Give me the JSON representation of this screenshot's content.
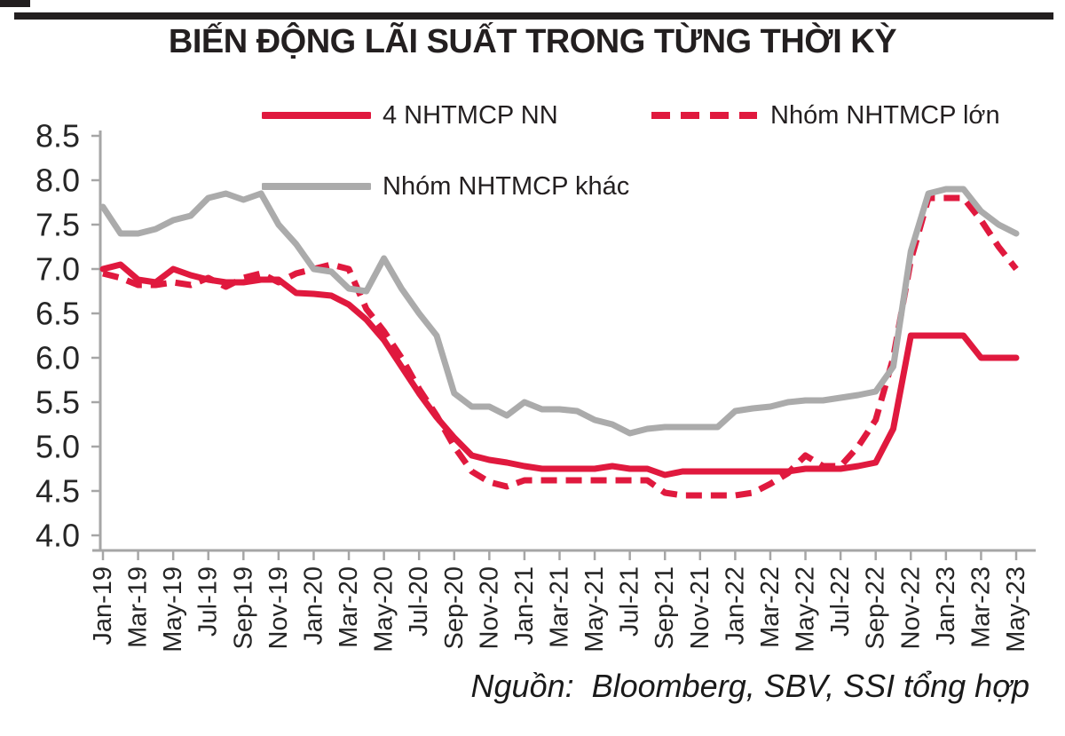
{
  "page": {
    "title": "BIẾN ĐỘNG LÃI SUẤT TRONG TỪNG THỜI KỲ",
    "source_note": "Nguồn:  Bloomberg, SBV, SSI tổng hợp"
  },
  "colors": {
    "accent_red": "#E0193E",
    "series_gray": "#ABABAB",
    "axis_gray": "#A6A6A6",
    "text_dark": "#231F20",
    "tick_label": "#262626",
    "top_bar": "#231F20"
  },
  "legend": {
    "items": [
      {
        "label": "4 NHTMCP NN",
        "style": "solid",
        "color": "#E0193E"
      },
      {
        "label": "Nhóm NHTMCP lớn",
        "style": "dashed",
        "color": "#E0193E"
      },
      {
        "label": "Nhóm NHTMCP khác",
        "style": "solid",
        "color": "#ABABAB"
      }
    ]
  },
  "chart_data": {
    "type": "line",
    "title": "BIẾN ĐỘNG LÃI SUẤT TRONG TỪNG THỜI KỲ",
    "xlabel": "",
    "ylabel": "",
    "ylim": [
      4.0,
      8.5
    ],
    "ytick_step": 0.5,
    "grid": false,
    "legend_position": "top",
    "x_tick_label_every": 2,
    "x": [
      "Jan-19",
      "Feb-19",
      "Mar-19",
      "Apr-19",
      "May-19",
      "Jun-19",
      "Jul-19",
      "Aug-19",
      "Sep-19",
      "Oct-19",
      "Nov-19",
      "Dec-19",
      "Jan-20",
      "Feb-20",
      "Mar-20",
      "Apr-20",
      "May-20",
      "Jun-20",
      "Jul-20",
      "Aug-20",
      "Sep-20",
      "Oct-20",
      "Nov-20",
      "Dec-20",
      "Jan-21",
      "Feb-21",
      "Mar-21",
      "Apr-21",
      "May-21",
      "Jun-21",
      "Jul-21",
      "Aug-21",
      "Sep-21",
      "Oct-21",
      "Nov-21",
      "Dec-21",
      "Jan-22",
      "Feb-22",
      "Mar-22",
      "Apr-22",
      "May-22",
      "Jun-22",
      "Jul-22",
      "Aug-22",
      "Sep-22",
      "Oct-22",
      "Nov-22",
      "Dec-22",
      "Jan-23",
      "Feb-23",
      "Mar-23",
      "Apr-23",
      "May-23"
    ],
    "series": [
      {
        "name": "4 NHTMCP NN",
        "style": "solid",
        "color": "#E0193E",
        "values": [
          7.0,
          7.05,
          6.88,
          6.85,
          7.0,
          6.93,
          6.88,
          6.85,
          6.85,
          6.88,
          6.88,
          6.73,
          6.72,
          6.7,
          6.6,
          6.43,
          6.2,
          5.9,
          5.6,
          5.33,
          5.1,
          4.9,
          4.85,
          4.82,
          4.78,
          4.75,
          4.75,
          4.75,
          4.75,
          4.78,
          4.75,
          4.75,
          4.68,
          4.72,
          4.72,
          4.72,
          4.72,
          4.72,
          4.72,
          4.72,
          4.75,
          4.75,
          4.75,
          4.78,
          4.82,
          5.2,
          6.25,
          6.25,
          6.25,
          6.25,
          6.0,
          6.0,
          6.0
        ]
      },
      {
        "name": "Nhóm NHTMCP lớn",
        "style": "dashed",
        "color": "#E0193E",
        "values": [
          6.95,
          6.9,
          6.82,
          6.82,
          6.85,
          6.82,
          6.9,
          6.8,
          6.9,
          6.95,
          6.85,
          6.95,
          7.0,
          7.05,
          7.0,
          6.55,
          6.3,
          6.0,
          5.65,
          5.35,
          5.0,
          4.72,
          4.6,
          4.55,
          4.62,
          4.62,
          4.62,
          4.62,
          4.62,
          4.62,
          4.62,
          4.62,
          4.48,
          4.45,
          4.45,
          4.45,
          4.45,
          4.48,
          4.58,
          4.7,
          4.9,
          4.78,
          4.78,
          5.0,
          5.3,
          6.0,
          7.1,
          7.8,
          7.8,
          7.8,
          7.55,
          7.25,
          7.0
        ]
      },
      {
        "name": "Nhóm NHTMCP khác",
        "style": "solid",
        "color": "#ABABAB",
        "values": [
          7.7,
          7.4,
          7.4,
          7.45,
          7.55,
          7.6,
          7.8,
          7.85,
          7.78,
          7.85,
          7.5,
          7.28,
          7.0,
          6.97,
          6.78,
          6.75,
          7.12,
          6.78,
          6.5,
          6.25,
          5.6,
          5.45,
          5.45,
          5.35,
          5.5,
          5.42,
          5.42,
          5.4,
          5.3,
          5.25,
          5.15,
          5.2,
          5.22,
          5.22,
          5.22,
          5.22,
          5.4,
          5.43,
          5.45,
          5.5,
          5.52,
          5.52,
          5.55,
          5.58,
          5.62,
          5.9,
          7.2,
          7.85,
          7.9,
          7.9,
          7.65,
          7.5,
          7.4
        ]
      }
    ]
  }
}
